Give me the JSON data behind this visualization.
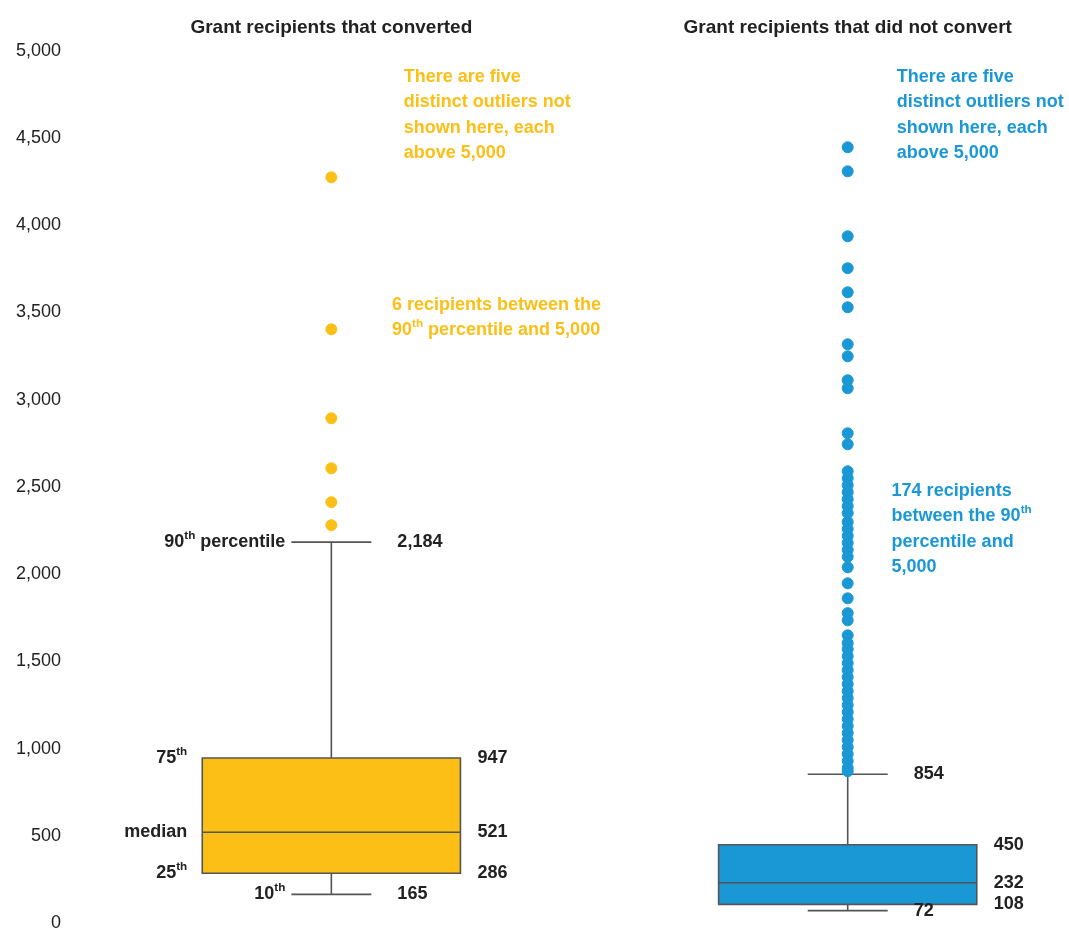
{
  "chart_data": {
    "type": "box",
    "categories": [
      "Grant recipients that converted",
      "Grant recipients that did not convert"
    ],
    "colors": [
      "#fbbf15",
      "#1a98d5"
    ],
    "boxes": [
      {
        "low": 165,
        "q1": 286,
        "median": 521,
        "q3": 947,
        "high": 2184,
        "outliers": [
          4275,
          3404,
          2894,
          2607,
          2413,
          2281
        ]
      },
      {
        "low": 72,
        "q1": 108,
        "median": 232,
        "q3": 450,
        "high": 854,
        "outliers": [
          4447,
          4309,
          3937,
          3754,
          3616,
          3530,
          3318,
          3249,
          3112,
          3066,
          2808,
          2745,
          2590,
          2550,
          2510,
          2470,
          2430,
          2390,
          2350,
          2300,
          2260,
          2220,
          2180,
          2140,
          2100,
          2040,
          1948,
          1862,
          1777,
          1736,
          1650,
          1605,
          1570,
          1530,
          1490,
          1450,
          1410,
          1370,
          1330,
          1290,
          1250,
          1210,
          1170,
          1130,
          1090,
          1050,
          1010,
          970,
          930,
          890,
          871
        ]
      }
    ],
    "ylim": [
      0,
      5000
    ],
    "yticks": [
      0,
      500,
      {
        "value": 1000,
        "label": "1,000"
      },
      {
        "value": 1500,
        "label": "1,500"
      },
      {
        "value": 2000,
        "label": "2,000"
      },
      {
        "value": 2500,
        "label": "2,500"
      },
      {
        "value": 3000,
        "label": "3,000"
      },
      {
        "value": 3500,
        "label": "3,500"
      },
      {
        "value": 4000,
        "label": "4,000"
      },
      {
        "value": 4500,
        "label": "4,500"
      },
      {
        "value": 5000,
        "label": "5,000"
      }
    ],
    "annotations": [
      "90$^{th}$ percentile",
      "75$^{th}$",
      "median",
      "25$^{th}$",
      "10$^{th}$",
      "2,184",
      "947",
      "521",
      "286",
      "165",
      "854",
      "450",
      "232",
      "108",
      "72",
      "There are five distinct outliers not shown here, each above 5,000",
      "6 recipients between the 90$^{th}$ percentile and 5,000",
      "There are five distinct outliers not shown here, each above 5,000",
      "174 recipients between the 90$^{th}$ percentile and 5,000"
    ]
  }
}
